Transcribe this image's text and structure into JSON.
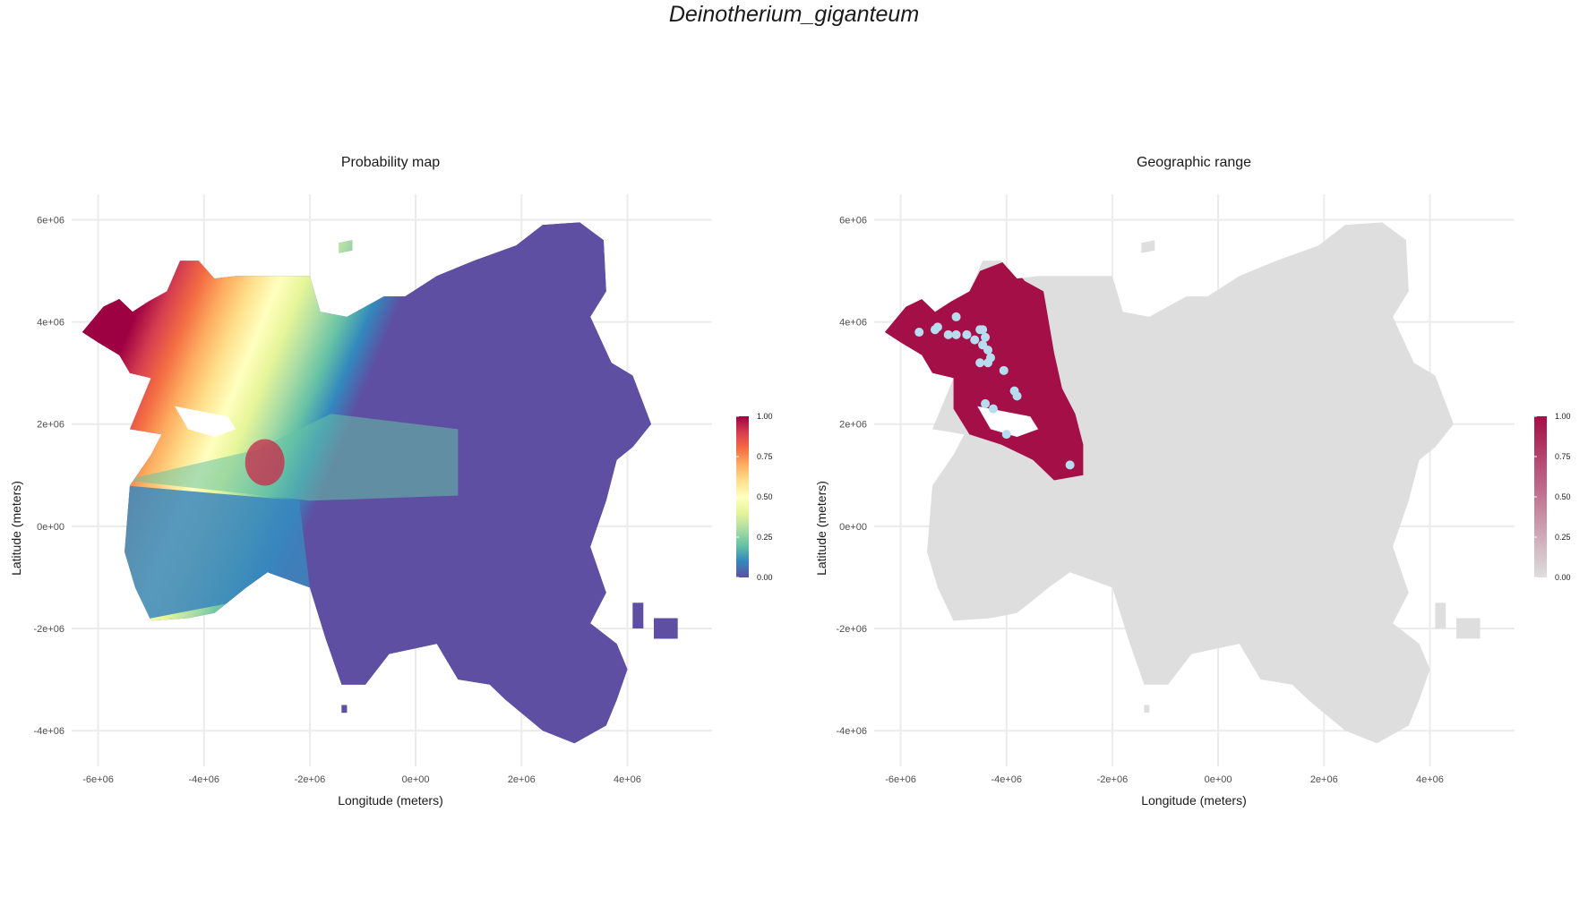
{
  "title": "Deinotherium_giganteum",
  "panels": [
    {
      "id": "probability",
      "title": "Probability map",
      "xlabel": "Longitude (meters)",
      "ylabel": "Latitude (meters)",
      "x_ticks": [
        "-6e+06",
        "-4e+06",
        "-2e+06",
        "0e+00",
        "2e+06",
        "4e+06"
      ],
      "y_ticks": [
        "6e+06",
        "4e+06",
        "2e+06",
        "0e+00",
        "-2e+06",
        "-4e+06"
      ],
      "legend": {
        "ticks": [
          "1.00",
          "0.75",
          "0.50",
          "0.25",
          "0.00"
        ],
        "colors": [
          "#9e0142",
          "#d53e4f",
          "#f46d43",
          "#fdae61",
          "#fee08b",
          "#ffffbf",
          "#e6f598",
          "#abdda4",
          "#66c2a5",
          "#3288bd",
          "#5e4fa2"
        ]
      },
      "land_color": "#5e4fa2"
    },
    {
      "id": "range",
      "title": "Geographic range",
      "xlabel": "Longitude (meters)",
      "ylabel": "Latitude (meters)",
      "x_ticks": [
        "-6e+06",
        "-4e+06",
        "-2e+06",
        "0e+00",
        "2e+06",
        "4e+06"
      ],
      "y_ticks": [
        "6e+06",
        "4e+06",
        "2e+06",
        "0e+00",
        "-2e+06",
        "-4e+06"
      ],
      "legend": {
        "ticks": [
          "1.00",
          "0.75",
          "0.50",
          "0.25",
          "0.00"
        ],
        "colors": [
          "#a50f47",
          "#dedede"
        ]
      },
      "land_color": "#dedede",
      "range_color": "#a50f47",
      "occurrence_color": "#b8dcef"
    }
  ],
  "chart_data": {
    "type": "map",
    "x_range": [
      -6500000.0,
      5600000.0
    ],
    "y_range": [
      -4700000.0,
      6500000.0
    ],
    "occurrences": [
      [
        -5650000.0,
        3800000.0
      ],
      [
        -5350000.0,
        3850000.0
      ],
      [
        -5300000.0,
        3900000.0
      ],
      [
        -5100000.0,
        3750000.0
      ],
      [
        -4950000.0,
        3750000.0
      ],
      [
        -4950000.0,
        4100000.0
      ],
      [
        -4750000.0,
        3750000.0
      ],
      [
        -4600000.0,
        3650000.0
      ],
      [
        -4500000.0,
        3850000.0
      ],
      [
        -4450000.0,
        3850000.0
      ],
      [
        -4400000.0,
        3700000.0
      ],
      [
        -4450000.0,
        3550000.0
      ],
      [
        -4350000.0,
        3450000.0
      ],
      [
        -4300000.0,
        3300000.0
      ],
      [
        -4350000.0,
        3200000.0
      ],
      [
        -4500000.0,
        3200000.0
      ],
      [
        -4050000.0,
        3050000.0
      ],
      [
        -4400000.0,
        2400000.0
      ],
      [
        -4250000.0,
        2300000.0
      ],
      [
        -3850000.0,
        2650000.0
      ],
      [
        -3800000.0,
        2550000.0
      ],
      [
        -4000000.0,
        1800000.0
      ],
      [
        -2800000.0,
        1200000.0
      ]
    ]
  }
}
